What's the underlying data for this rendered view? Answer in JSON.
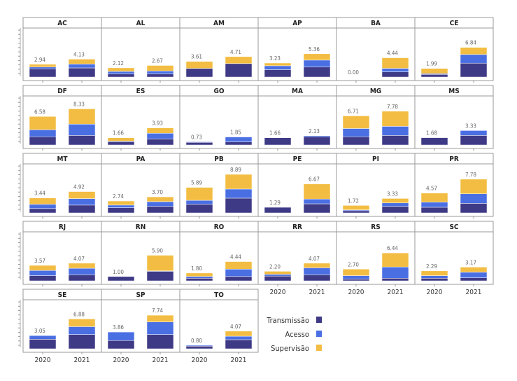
{
  "chart_data": {
    "type": "bar",
    "stacked": true,
    "facets": "6 columns, small multiples by state",
    "categories": [
      "2020",
      "2021"
    ],
    "ylim": [
      0,
      10.5
    ],
    "legend": {
      "placement": "bottom-center",
      "entries": [
        "Transmissão",
        "Acesso",
        "Supervisão"
      ]
    },
    "colors": {
      "Transmissão": "#3f3a86",
      "Acesso": "#4a6fe3",
      "Supervisão": "#f2bd42"
    },
    "panels": [
      {
        "state": "AC",
        "totals": [
          "2.94",
          "4.13"
        ],
        "Transmissão": [
          1.9,
          2.1
        ],
        "Acesso": [
          0.4,
          0.9
        ],
        "Supervisão": [
          0.64,
          1.13
        ]
      },
      {
        "state": "AL",
        "totals": [
          "2.12",
          "2.67"
        ],
        "Transmissão": [
          0.7,
          0.7
        ],
        "Acesso": [
          0.6,
          0.7
        ],
        "Supervisão": [
          0.82,
          1.27
        ]
      },
      {
        "state": "AM",
        "totals": [
          "3.61",
          "4.71"
        ],
        "Transmissão": [
          2.0,
          3.1
        ],
        "Acesso": [
          0,
          0
        ],
        "Supervisão": [
          1.61,
          1.61
        ]
      },
      {
        "state": "AP",
        "totals": [
          "3.23",
          "5.36"
        ],
        "Transmissão": [
          1.7,
          2.3
        ],
        "Acesso": [
          0.9,
          1.6
        ],
        "Supervisão": [
          0.63,
          1.46
        ]
      },
      {
        "state": "BA",
        "totals": [
          "0.00",
          "4.44"
        ],
        "Transmissão": [
          0,
          1.2
        ],
        "Acesso": [
          0,
          0.8
        ],
        "Supervisão": [
          0,
          2.44
        ]
      },
      {
        "state": "CE",
        "totals": [
          "1.99",
          "6.84"
        ],
        "Transmissão": [
          0.6,
          3.2
        ],
        "Acesso": [
          0.2,
          2.0
        ],
        "Supervisão": [
          1.19,
          1.64
        ]
      },
      {
        "state": "DF",
        "totals": [
          "6.58",
          "8.33"
        ],
        "Transmissão": [
          1.9,
          2.2
        ],
        "Acesso": [
          1.6,
          2.6
        ],
        "Supervisão": [
          3.08,
          3.53
        ]
      },
      {
        "state": "ES",
        "totals": [
          "1.66",
          "3.93"
        ],
        "Transmissão": [
          0.8,
          1.4
        ],
        "Acesso": [
          0.1,
          1.3
        ],
        "Supervisão": [
          0.76,
          1.23
        ]
      },
      {
        "state": "GO",
        "totals": [
          "0.73",
          "1.85"
        ],
        "Transmissão": [
          0.6,
          0.7
        ],
        "Acesso": [
          0.13,
          1.15
        ],
        "Supervisão": [
          0,
          0
        ]
      },
      {
        "state": "MA",
        "totals": [
          "1.66",
          "2.13"
        ],
        "Transmissão": [
          1.66,
          1.9
        ],
        "Acesso": [
          0,
          0.23
        ],
        "Supervisão": [
          0,
          0
        ]
      },
      {
        "state": "MG",
        "totals": [
          "6.71",
          "7.78"
        ],
        "Transmissão": [
          1.9,
          2.2
        ],
        "Acesso": [
          1.9,
          2.1
        ],
        "Supervisão": [
          2.91,
          3.48
        ]
      },
      {
        "state": "MS",
        "totals": [
          "1.68",
          "3.33"
        ],
        "Transmissão": [
          1.68,
          2.2
        ],
        "Acesso": [
          0,
          1.13
        ],
        "Supervisão": [
          0,
          0
        ]
      },
      {
        "state": "MT",
        "totals": [
          "3.44",
          "4.92"
        ],
        "Transmissão": [
          1.0,
          1.8
        ],
        "Acesso": [
          1.0,
          1.5
        ],
        "Supervisão": [
          1.44,
          1.62
        ]
      },
      {
        "state": "PA",
        "totals": [
          "2.74",
          "3.70"
        ],
        "Transmissão": [
          1.2,
          1.5
        ],
        "Acesso": [
          0.6,
          1.1
        ],
        "Supervisão": [
          0.94,
          1.1
        ]
      },
      {
        "state": "PB",
        "totals": [
          "5.89",
          "8.89"
        ],
        "Transmissão": [
          2.0,
          3.4
        ],
        "Acesso": [
          0.9,
          2.1
        ],
        "Supervisão": [
          2.99,
          3.39
        ]
      },
      {
        "state": "PE",
        "totals": [
          "1.29",
          "6.67"
        ],
        "Transmissão": [
          1.29,
          2.1
        ],
        "Acesso": [
          0,
          1.1
        ],
        "Supervisão": [
          0,
          3.47
        ]
      },
      {
        "state": "PI",
        "totals": [
          "1.72",
          "3.33"
        ],
        "Transmissão": [
          0.5,
          1.5
        ],
        "Acesso": [
          0.2,
          0.8
        ],
        "Supervisão": [
          1.02,
          1.03
        ]
      },
      {
        "state": "PR",
        "totals": [
          "4.57",
          "7.78"
        ],
        "Transmissão": [
          1.3,
          2.2
        ],
        "Acesso": [
          1.2,
          2.2
        ],
        "Supervisão": [
          2.07,
          3.38
        ]
      },
      {
        "state": "RJ",
        "totals": [
          "3.57",
          "4.07"
        ],
        "Transmissão": [
          1.2,
          1.4
        ],
        "Acesso": [
          1.2,
          1.5
        ],
        "Supervisão": [
          1.17,
          1.17
        ]
      },
      {
        "state": "RN",
        "totals": [
          "1.00",
          "5.90"
        ],
        "Transmissão": [
          1.0,
          2.2
        ],
        "Acesso": [
          0,
          0.1
        ],
        "Supervisão": [
          0,
          3.6
        ]
      },
      {
        "state": "RO",
        "totals": [
          "1.80",
          "4.44"
        ],
        "Transmissão": [
          0.6,
          1.0
        ],
        "Acesso": [
          0.4,
          1.7
        ],
        "Supervisão": [
          0.8,
          1.74
        ]
      },
      {
        "state": "RR",
        "totals": [
          "2.20",
          "4.07"
        ],
        "Transmissão": [
          1.1,
          1.4
        ],
        "Acesso": [
          0.4,
          1.6
        ],
        "Supervisão": [
          0.7,
          1.07
        ]
      },
      {
        "state": "RS",
        "totals": [
          "2.70",
          "6.44"
        ],
        "Transmissão": [
          0.4,
          0.6
        ],
        "Acesso": [
          0.8,
          2.6
        ],
        "Supervisão": [
          1.5,
          3.24
        ]
      },
      {
        "state": "SC",
        "totals": [
          "2.29",
          "3.17"
        ],
        "Transmissão": [
          0.6,
          0.7
        ],
        "Acesso": [
          0.6,
          1.3
        ],
        "Supervisão": [
          1.09,
          1.17
        ]
      },
      {
        "state": "SE",
        "totals": [
          "3.05",
          "6.88"
        ],
        "Transmissão": [
          2.2,
          3.3
        ],
        "Acesso": [
          0.85,
          1.8
        ],
        "Supervisão": [
          0,
          1.78
        ]
      },
      {
        "state": "SP",
        "totals": [
          "3.86",
          "7.74"
        ],
        "Transmissão": [
          1.9,
          3.3
        ],
        "Acesso": [
          1.96,
          2.9
        ],
        "Supervisão": [
          0,
          1.54
        ]
      },
      {
        "state": "TO",
        "totals": [
          "0.80",
          "4.07"
        ],
        "Transmissão": [
          0.6,
          2.1
        ],
        "Acesso": [
          0.2,
          0.8
        ],
        "Supervisão": [
          0,
          1.17
        ]
      }
    ]
  }
}
